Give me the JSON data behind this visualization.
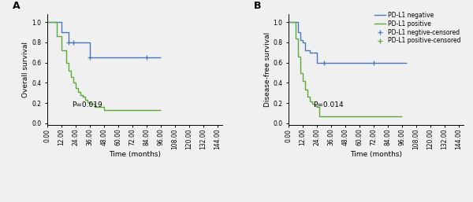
{
  "panel_A": {
    "title": "A",
    "ylabel": "Overall survival",
    "xlabel": "Time (months)",
    "pvalue": "P=0.019",
    "blue_km": {
      "times": [
        0,
        8,
        12,
        16,
        18,
        22,
        24,
        36,
        96
      ],
      "surv": [
        1.0,
        1.0,
        0.9,
        0.9,
        0.8,
        0.8,
        0.8,
        0.65,
        0.65
      ],
      "censor_times": [
        18,
        22,
        36,
        84
      ],
      "censor_surv": [
        0.8,
        0.8,
        0.65,
        0.65
      ]
    },
    "green_km": {
      "times": [
        0,
        8,
        12,
        16,
        18,
        20,
        22,
        24,
        26,
        28,
        30,
        32,
        34,
        36,
        40,
        48,
        54,
        96
      ],
      "surv": [
        1.0,
        0.86,
        0.72,
        0.6,
        0.52,
        0.46,
        0.4,
        0.35,
        0.31,
        0.28,
        0.26,
        0.23,
        0.21,
        0.19,
        0.16,
        0.13,
        0.13,
        0.13
      ],
      "censor_times": [],
      "censor_surv": []
    }
  },
  "panel_B": {
    "title": "B",
    "ylabel": "Disease-free survival",
    "xlabel": "Time (months)",
    "pvalue": "P=0.014",
    "blue_km": {
      "times": [
        0,
        6,
        8,
        10,
        12,
        14,
        18,
        24,
        30,
        36,
        100
      ],
      "surv": [
        1.0,
        1.0,
        0.9,
        0.82,
        0.8,
        0.72,
        0.7,
        0.6,
        0.6,
        0.6,
        0.6
      ],
      "censor_times": [
        30,
        72
      ],
      "censor_surv": [
        0.6,
        0.6
      ]
    },
    "green_km": {
      "times": [
        0,
        6,
        8,
        10,
        12,
        14,
        16,
        18,
        20,
        22,
        24,
        26,
        96
      ],
      "surv": [
        1.0,
        0.84,
        0.66,
        0.5,
        0.42,
        0.33,
        0.26,
        0.22,
        0.19,
        0.17,
        0.16,
        0.07,
        0.07
      ],
      "censor_times": [],
      "censor_surv": []
    }
  },
  "legend_labels": [
    "PD-L1 negative",
    "PD-L1 positive",
    "PD-L1 negtive-censored",
    "PD-L1 positive-censored"
  ],
  "blue_color": "#4878BE",
  "green_color": "#5AAA3C",
  "xticks": [
    0,
    12,
    24,
    36,
    48,
    60,
    72,
    84,
    96,
    108,
    120,
    132,
    144
  ],
  "xlim": [
    0,
    148
  ],
  "ylim": [
    -0.02,
    1.08
  ],
  "yticks": [
    0.0,
    0.2,
    0.4,
    0.6,
    0.8,
    1.0
  ],
  "fontsize_label": 6.5,
  "fontsize_tick": 5.5,
  "fontsize_legend": 5.5,
  "fontsize_pvalue": 6.5,
  "fontsize_panel": 9,
  "background_color": "#f0f0f0"
}
